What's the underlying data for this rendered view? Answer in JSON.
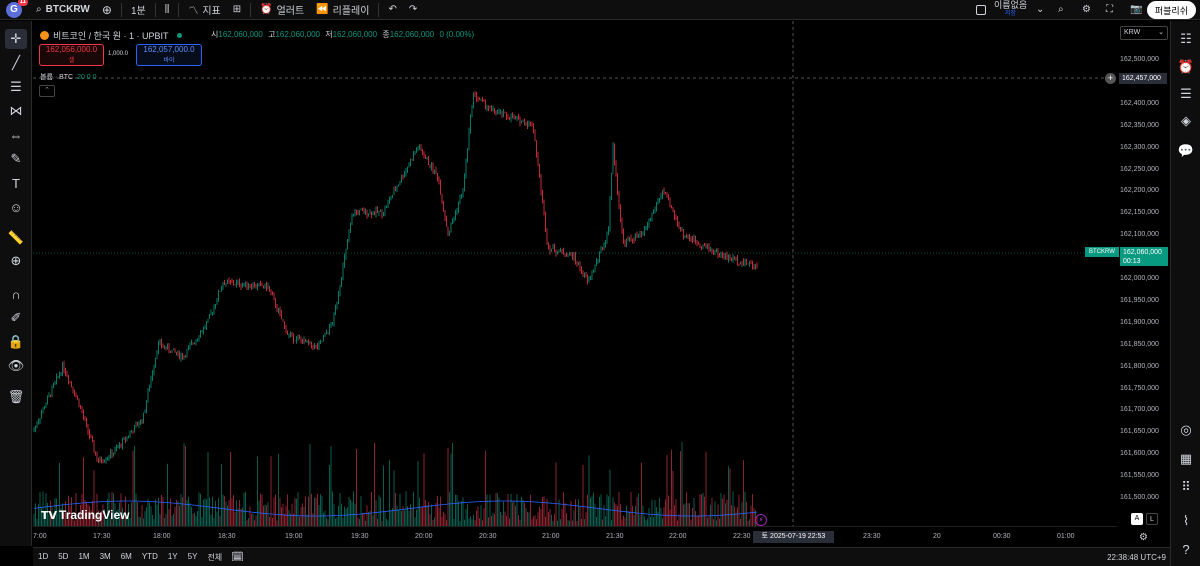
{
  "topbar": {
    "avatar_letter": "G",
    "avatar_badge": "11",
    "symbol": "BTCKRW",
    "add_icon": "plus-circle-icon",
    "interval": "1분",
    "chart_type_icon": "candles-icon",
    "indicators": "지표",
    "layouts_icon": "grid-icon",
    "alert": "얼러트",
    "replay": "리플레이",
    "undo_icon": "undo-icon",
    "redo_icon": "redo-icon",
    "layout_name": "이름없음",
    "layout_sub": "저장",
    "publish": "퍼블리쉬"
  },
  "legend": {
    "title": "비트코인 / 한국 원 · 1 · UPBIT",
    "o_label": "시",
    "o_val": "162,060,000",
    "h_label": "고",
    "h_val": "162,060,000",
    "l_label": "저",
    "l_val": "162,060,000",
    "c_label": "종",
    "c_val": "162,060,000",
    "change": "0 (0.00%)",
    "sell_price": "162,056,000.0",
    "sell_label": "셀",
    "spread": "1,000.0",
    "buy_price": "162,057,000.0",
    "buy_label": "바이",
    "volume_label": "볼륨 · BTC",
    "volume_vals": "20  0  0"
  },
  "currency_select": "KRW",
  "price_axis": [
    "162,500,000",
    "162,450,000",
    "162,400,000",
    "162,350,000",
    "162,300,000",
    "162,250,000",
    "162,200,000",
    "162,150,000",
    "162,100,000",
    "162,050,000",
    "162,000,000",
    "161,950,000",
    "161,900,000",
    "161,850,000",
    "161,800,000",
    "161,750,000",
    "161,700,000",
    "161,650,000",
    "161,600,000",
    "161,550,000",
    "161,500,000"
  ],
  "cursor_price": "162,457,000",
  "last_price": {
    "symbol": "BTCKRW",
    "price": "162,060,000",
    "countdown": "00:13"
  },
  "time_axis": [
    "7:00",
    "17:30",
    "18:00",
    "18:30",
    "19:00",
    "19:30",
    "20:00",
    "20:30",
    "21:00",
    "21:30",
    "22:00",
    "22:30",
    "23:30",
    "20",
    "00:30",
    "01:00"
  ],
  "cursor_time": "토 2025-07-19  22:53",
  "watermark": "TradingView",
  "scale_buttons": {
    "auto": "A",
    "log": "L"
  },
  "bottombar": {
    "ranges": [
      "1D",
      "5D",
      "1M",
      "3M",
      "6M",
      "YTD",
      "1Y",
      "5Y",
      "전체"
    ],
    "clock": "22:38:48 UTC+9"
  },
  "colors": {
    "up": "#089981",
    "down": "#f23645",
    "volume_ma": "#2962ff"
  }
}
